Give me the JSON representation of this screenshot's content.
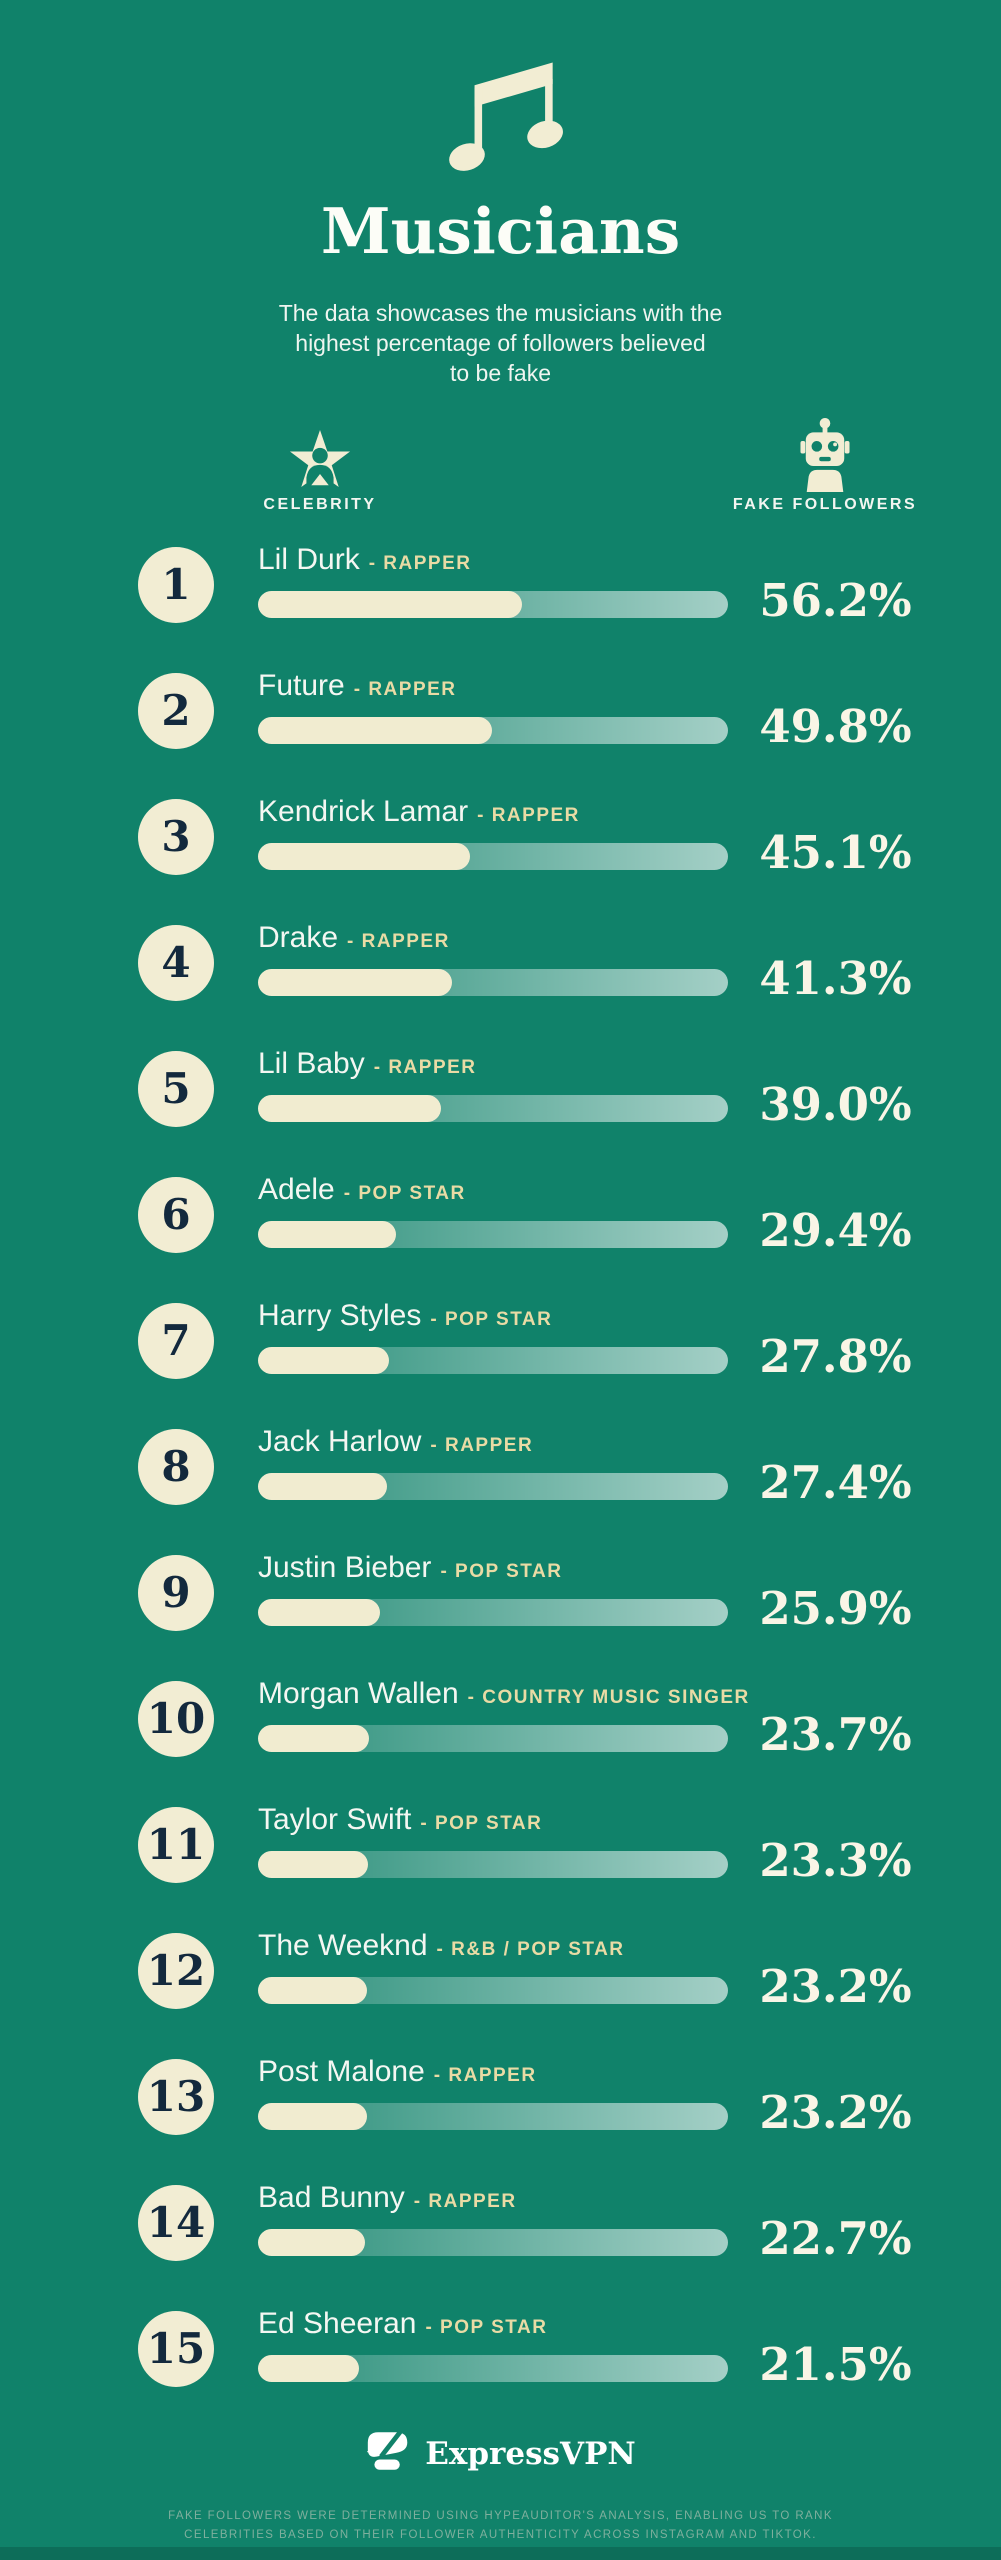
{
  "colors": {
    "background": "#10826A",
    "cream": "#F2EDD3",
    "khaki_genre": "#E9DBA5",
    "navy_rank": "#13293D",
    "percent_text": "#F9F5E6",
    "disclaimer_text": "#7FAF9D"
  },
  "header": {
    "icon": "music-note-icon",
    "title": "Musicians",
    "subtitle": "The data showcases the musicians with the\nhighest percentage of followers believed\nto be fake"
  },
  "columns": {
    "celebrity": {
      "icon": "celebrity-star-icon",
      "label": "CELEBRITY"
    },
    "fake_followers": {
      "icon": "robot-icon",
      "label": "FAKE FOLLOWERS"
    }
  },
  "rows": [
    {
      "rank": "1",
      "name": "Lil Durk",
      "genre": "RAPPER",
      "pct": "56.2%",
      "value": 56.2
    },
    {
      "rank": "2",
      "name": "Future",
      "genre": "RAPPER",
      "pct": "49.8%",
      "value": 49.8
    },
    {
      "rank": "3",
      "name": "Kendrick Lamar",
      "genre": "RAPPER",
      "pct": "45.1%",
      "value": 45.1
    },
    {
      "rank": "4",
      "name": "Drake",
      "genre": "RAPPER",
      "pct": "41.3%",
      "value": 41.3
    },
    {
      "rank": "5",
      "name": "Lil Baby",
      "genre": "RAPPER",
      "pct": "39.0%",
      "value": 39.0
    },
    {
      "rank": "6",
      "name": "Adele",
      "genre": "POP STAR",
      "pct": "29.4%",
      "value": 29.4
    },
    {
      "rank": "7",
      "name": "Harry Styles",
      "genre": "POP STAR",
      "pct": "27.8%",
      "value": 27.8
    },
    {
      "rank": "8",
      "name": "Jack Harlow",
      "genre": "RAPPER",
      "pct": "27.4%",
      "value": 27.4
    },
    {
      "rank": "9",
      "name": "Justin Bieber",
      "genre": "POP STAR",
      "pct": "25.9%",
      "value": 25.9
    },
    {
      "rank": "10",
      "name": "Morgan Wallen",
      "genre": "COUNTRY MUSIC SINGER",
      "pct": "23.7%",
      "value": 23.7
    },
    {
      "rank": "11",
      "name": "Taylor Swift",
      "genre": "POP STAR",
      "pct": "23.3%",
      "value": 23.3
    },
    {
      "rank": "12",
      "name": "The Weeknd",
      "genre": "R&B / POP STAR",
      "pct": "23.2%",
      "value": 23.2
    },
    {
      "rank": "13",
      "name": "Post Malone",
      "genre": "RAPPER",
      "pct": "23.2%",
      "value": 23.2
    },
    {
      "rank": "14",
      "name": "Bad Bunny",
      "genre": "RAPPER",
      "pct": "22.7%",
      "value": 22.7
    },
    {
      "rank": "15",
      "name": "Ed Sheeran",
      "genre": "POP STAR",
      "pct": "21.5%",
      "value": 21.5
    }
  ],
  "footer": {
    "logo_icon": "expressvpn-logo-icon",
    "brand": "ExpressVPN",
    "disclaimer": "FAKE FOLLOWERS WERE DETERMINED USING HYPEAUDITOR'S ANALYSIS, ENABLING US TO RANK\nCELEBRITIES BASED ON THEIR FOLLOWER AUTHENTICITY ACROSS INSTAGRAM AND TIKTOK."
  },
  "chart_data": {
    "type": "bar",
    "orientation": "horizontal",
    "title": "Musicians",
    "subtitle": "The data showcases the musicians with the highest percentage of followers believed to be fake",
    "categories": [
      "Lil Durk",
      "Future",
      "Kendrick Lamar",
      "Drake",
      "Lil Baby",
      "Adele",
      "Harry Styles",
      "Jack Harlow",
      "Justin Bieber",
      "Morgan Wallen",
      "Taylor Swift",
      "The Weeknd",
      "Post Malone",
      "Bad Bunny",
      "Ed Sheeran"
    ],
    "category_genres": [
      "RAPPER",
      "RAPPER",
      "RAPPER",
      "RAPPER",
      "RAPPER",
      "POP STAR",
      "POP STAR",
      "RAPPER",
      "POP STAR",
      "COUNTRY MUSIC SINGER",
      "POP STAR",
      "R&B / POP STAR",
      "RAPPER",
      "RAPPER",
      "POP STAR"
    ],
    "series": [
      {
        "name": "FAKE FOLLOWERS",
        "values": [
          56.2,
          49.8,
          45.1,
          41.3,
          39.0,
          29.4,
          27.8,
          27.4,
          25.9,
          23.7,
          23.3,
          23.2,
          23.2,
          22.7,
          21.5
        ]
      }
    ],
    "xlabel": "CELEBRITY",
    "ylabel": "FAKE FOLLOWERS",
    "value_suffix": "%",
    "xlim": [
      0,
      100
    ],
    "grid": false,
    "legend_position": "none"
  }
}
